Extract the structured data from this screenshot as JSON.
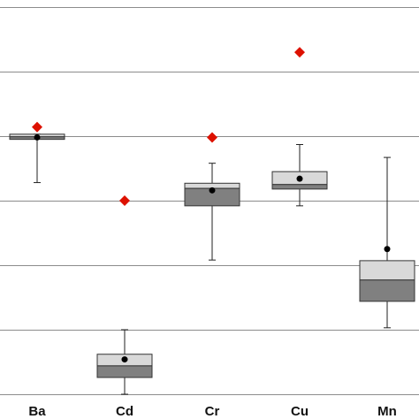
{
  "chart_data": {
    "type": "box",
    "title": "",
    "xlabel": "",
    "ylabel": "",
    "ylim": [
      0,
      6
    ],
    "grid_lines": [
      0,
      1,
      2,
      3,
      4,
      5,
      6
    ],
    "categories": [
      "Ba",
      "Cd",
      "Cr",
      "Cu",
      "Mn"
    ],
    "boxes": [
      {
        "category": "Ba",
        "whisker_low": 3.28,
        "q1": 3.95,
        "median": 3.99,
        "q3": 4.03,
        "whisker_high": 4.03,
        "mean": 3.98,
        "diamond": 4.14
      },
      {
        "category": "Cd",
        "whisker_low": 0.0,
        "q1": 0.26,
        "median": 0.44,
        "q3": 0.62,
        "whisker_high": 1.0,
        "mean": 0.54,
        "diamond": 3.0
      },
      {
        "category": "Cr",
        "whisker_low": 2.08,
        "q1": 2.92,
        "median": 3.19,
        "q3": 3.27,
        "whisker_high": 3.58,
        "mean": 3.16,
        "diamond": 3.98
      },
      {
        "category": "Cu",
        "whisker_low": 2.92,
        "q1": 3.18,
        "median": 3.25,
        "q3": 3.45,
        "whisker_high": 3.87,
        "mean": 3.34,
        "diamond": 5.3
      },
      {
        "category": "Mn",
        "whisker_low": 1.03,
        "q1": 1.44,
        "median": 1.77,
        "q3": 2.07,
        "whisker_high": 3.67,
        "mean": 2.25,
        "diamond": null
      }
    ],
    "colors": {
      "upper_box": "#d9d9d9",
      "lower_box": "#808080",
      "box_outline": "#333333",
      "whisker": "#222222",
      "mean_dot": "#000000",
      "diamond": "#dd1100",
      "grid": "#8c8c8c"
    },
    "grid": true,
    "legend": "none"
  }
}
